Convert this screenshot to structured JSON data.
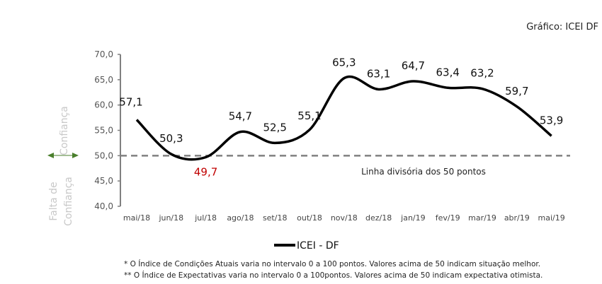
{
  "source_label": "Gráfico: ICEI DF",
  "side_labels": {
    "top": "Confiança",
    "bottom_1": "Falta de",
    "bottom_2": "Confiança"
  },
  "divider_label": "Linha divisória dos 50 pontos",
  "footnotes": [
    "* O Índice de Condições Atuais varia no intervalo 0 a 100 pontos. Valores acima de 50 indicam situação melhor.",
    "** O Índice de Expectativas varia no intervalo 0 a 100pontos. Valores acima de 50 indicam expectativa otimista."
  ],
  "colors": {
    "line": "#000000",
    "below_50": "#c00000",
    "arrow": "#4a7f2c",
    "divider": "#808080",
    "axis": "#808080"
  },
  "chart_data": {
    "type": "line",
    "categories": [
      "mai/18",
      "jun/18",
      "jul/18",
      "ago/18",
      "set/18",
      "out/18",
      "nov/18",
      "dez/18",
      "jan/19",
      "fev/19",
      "mar/19",
      "abr/19",
      "mai/19"
    ],
    "series": [
      {
        "name": "ICEI  - DF",
        "values": [
          57.1,
          50.3,
          49.7,
          54.7,
          52.5,
          55.1,
          65.3,
          63.1,
          64.7,
          63.4,
          63.2,
          59.7,
          53.9
        ]
      }
    ],
    "data_labels": [
      "57,1",
      "50,3",
      "49,7",
      "54,7",
      "52,5",
      "55,1",
      "65,3",
      "63,1",
      "64,7",
      "63,4",
      "63,2",
      "59,7",
      "53,9"
    ],
    "yticks": [
      "70,0",
      "65,0",
      "60,0",
      "55,0",
      "50,0",
      "45,0",
      "40,0"
    ],
    "ylim": [
      40,
      70
    ],
    "reference_line": 50,
    "smooth": true,
    "grid": false,
    "legend": "bottom-center"
  }
}
